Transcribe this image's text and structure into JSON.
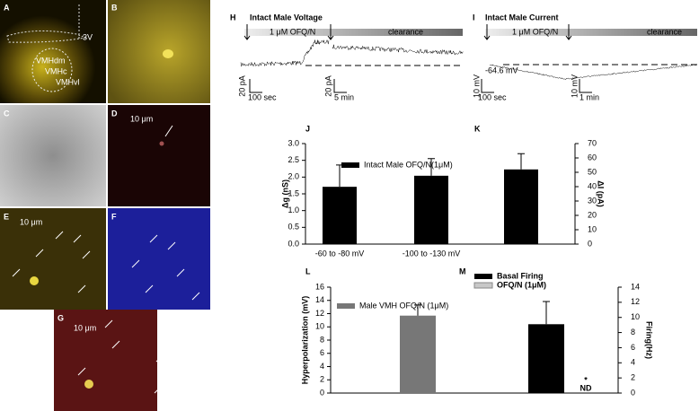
{
  "panels": [
    "A",
    "B",
    "C",
    "D",
    "E",
    "F",
    "G",
    "H",
    "I",
    "J",
    "K",
    "L",
    "M"
  ],
  "micrographs": {
    "A": {
      "labels": [
        "3V",
        "VMHdm",
        "VMHc",
        "VMHvl"
      ]
    },
    "D": {
      "scale": "10 μm"
    },
    "E": {
      "scale": "10 μm"
    },
    "G": {
      "scale": "10 μm"
    }
  },
  "traces": [
    {
      "title": "Intact Male Voltage",
      "drug": "1 μM OFQ/N",
      "wash": "clearance",
      "scales": [
        "20 pA",
        "100 sec",
        "20 pA",
        "5 min"
      ]
    },
    {
      "title": "Intact Male Current",
      "drug": "1 μM OFQ/N",
      "wash": "clearance",
      "potential": "-64.6 mV",
      "scales": [
        "10 mV",
        "100 sec",
        "10 mV",
        "1 min"
      ]
    }
  ],
  "chart_data": [
    {
      "type": "bar",
      "categories": [
        "-60 to -80 mV",
        "-100 to -130 mV",
        null
      ],
      "ylabel": "Δg (nS)",
      "y2label": "ΔI (pA)",
      "ylim": [
        0,
        3
      ],
      "yticks": [
        {
          "value": 0,
          "label": "0.0"
        },
        {
          "value": 0.5,
          "label": "0.5"
        },
        {
          "value": 1,
          "label": "1.0"
        },
        {
          "value": 1.5,
          "label": "1.5"
        },
        {
          "value": 2,
          "label": "2.0"
        },
        {
          "value": 2.5,
          "label": "2.5"
        },
        {
          "value": 3,
          "label": "3.0"
        }
      ],
      "y2lim": [
        0,
        70
      ],
      "y2ticks": [
        0,
        10,
        20,
        30,
        40,
        50,
        60,
        70
      ],
      "series": [
        {
          "name": "Intact Male OFQ/N(1μM)",
          "color": "#000000",
          "values": [
            1.71,
            2.04,
            null
          ],
          "errors": [
            0.65,
            0.51,
            null
          ]
        },
        {
          "axis": "y2",
          "color": "#000000",
          "values": [
            null,
            null,
            52
          ],
          "errors": [
            null,
            null,
            11
          ]
        }
      ]
    },
    {
      "type": "bar",
      "categories": [
        null,
        null,
        null
      ],
      "ylabel": "Hyperpolarization (mV)",
      "y2label": "Firing(Hz)",
      "ylim": [
        0,
        16
      ],
      "yticks": [
        0,
        2,
        4,
        6,
        8,
        10,
        12,
        14,
        16
      ],
      "y2lim": [
        0,
        14
      ],
      "y2ticks": [
        0,
        2,
        4,
        6,
        8,
        10,
        12,
        14
      ],
      "series": [
        {
          "name": "Male VMH OFQ/N (1μM)",
          "color": "#777777",
          "values": [
            11.7,
            null,
            null
          ],
          "errors": [
            1.6,
            null,
            null
          ]
        },
        {
          "name": "Basal Firing",
          "axis": "y2",
          "color": "#000000",
          "values": [
            null,
            9.1,
            null
          ],
          "errors": [
            null,
            3.0,
            null
          ]
        },
        {
          "name": "OFQ/N (1μM)",
          "axis": "y2",
          "color": "#c8c8c8",
          "values": [
            null,
            null,
            null
          ],
          "errors": [
            null,
            null,
            null
          ]
        }
      ],
      "annotations": [
        "*",
        "ND"
      ]
    }
  ]
}
